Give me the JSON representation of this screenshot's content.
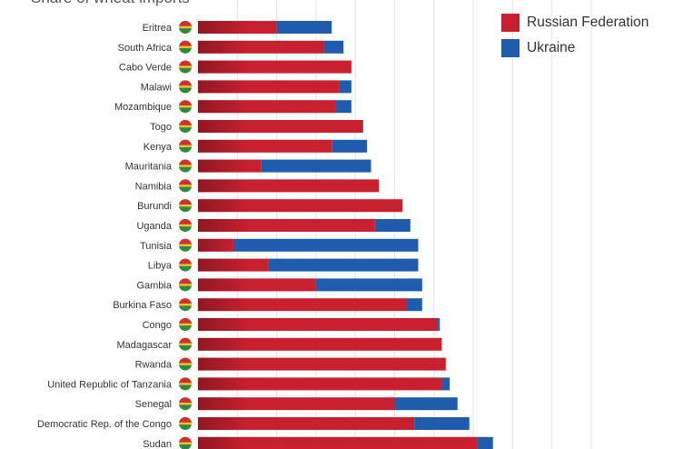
{
  "subtitle": "Share of wheat imports",
  "legend": [
    {
      "label": "Russian Federation",
      "color": "#c8202f"
    },
    {
      "label": "Ukraine",
      "color": "#1f5cae"
    }
  ],
  "chart_data": {
    "type": "bar",
    "orientation": "horizontal",
    "stacked": true,
    "title": "Share of wheat imports",
    "xlim": [
      0,
      100
    ],
    "grid": true,
    "legend_position": "top-right",
    "categories": [
      "Eritrea",
      "South Africa",
      "Cabo Verde",
      "Malawi",
      "Mozambique",
      "Togo",
      "Kenya",
      "Mauritania",
      "Namibia",
      "Burundi",
      "Uganda",
      "Tunisia",
      "Libya",
      "Gambia",
      "Burkina Faso",
      "Congo",
      "Madagascar",
      "Rwanda",
      "United Republic of Tanzania",
      "Senegal",
      "Democratic Rep. of the Congo",
      "Sudan"
    ],
    "series": [
      {
        "name": "Russian Federation",
        "color": "#c8202f",
        "values": [
          20,
          32,
          39,
          36,
          35,
          42,
          34,
          16,
          46,
          52,
          45,
          9,
          18,
          30,
          53,
          61,
          62,
          63,
          62,
          50,
          55,
          71
        ]
      },
      {
        "name": "Ukraine",
        "color": "#1f5cae",
        "values": [
          14,
          5,
          0,
          3,
          4,
          0,
          9,
          28,
          0,
          0,
          9,
          47,
          38,
          27,
          4,
          0.5,
          0,
          0,
          2,
          16,
          14,
          4
        ]
      }
    ]
  }
}
